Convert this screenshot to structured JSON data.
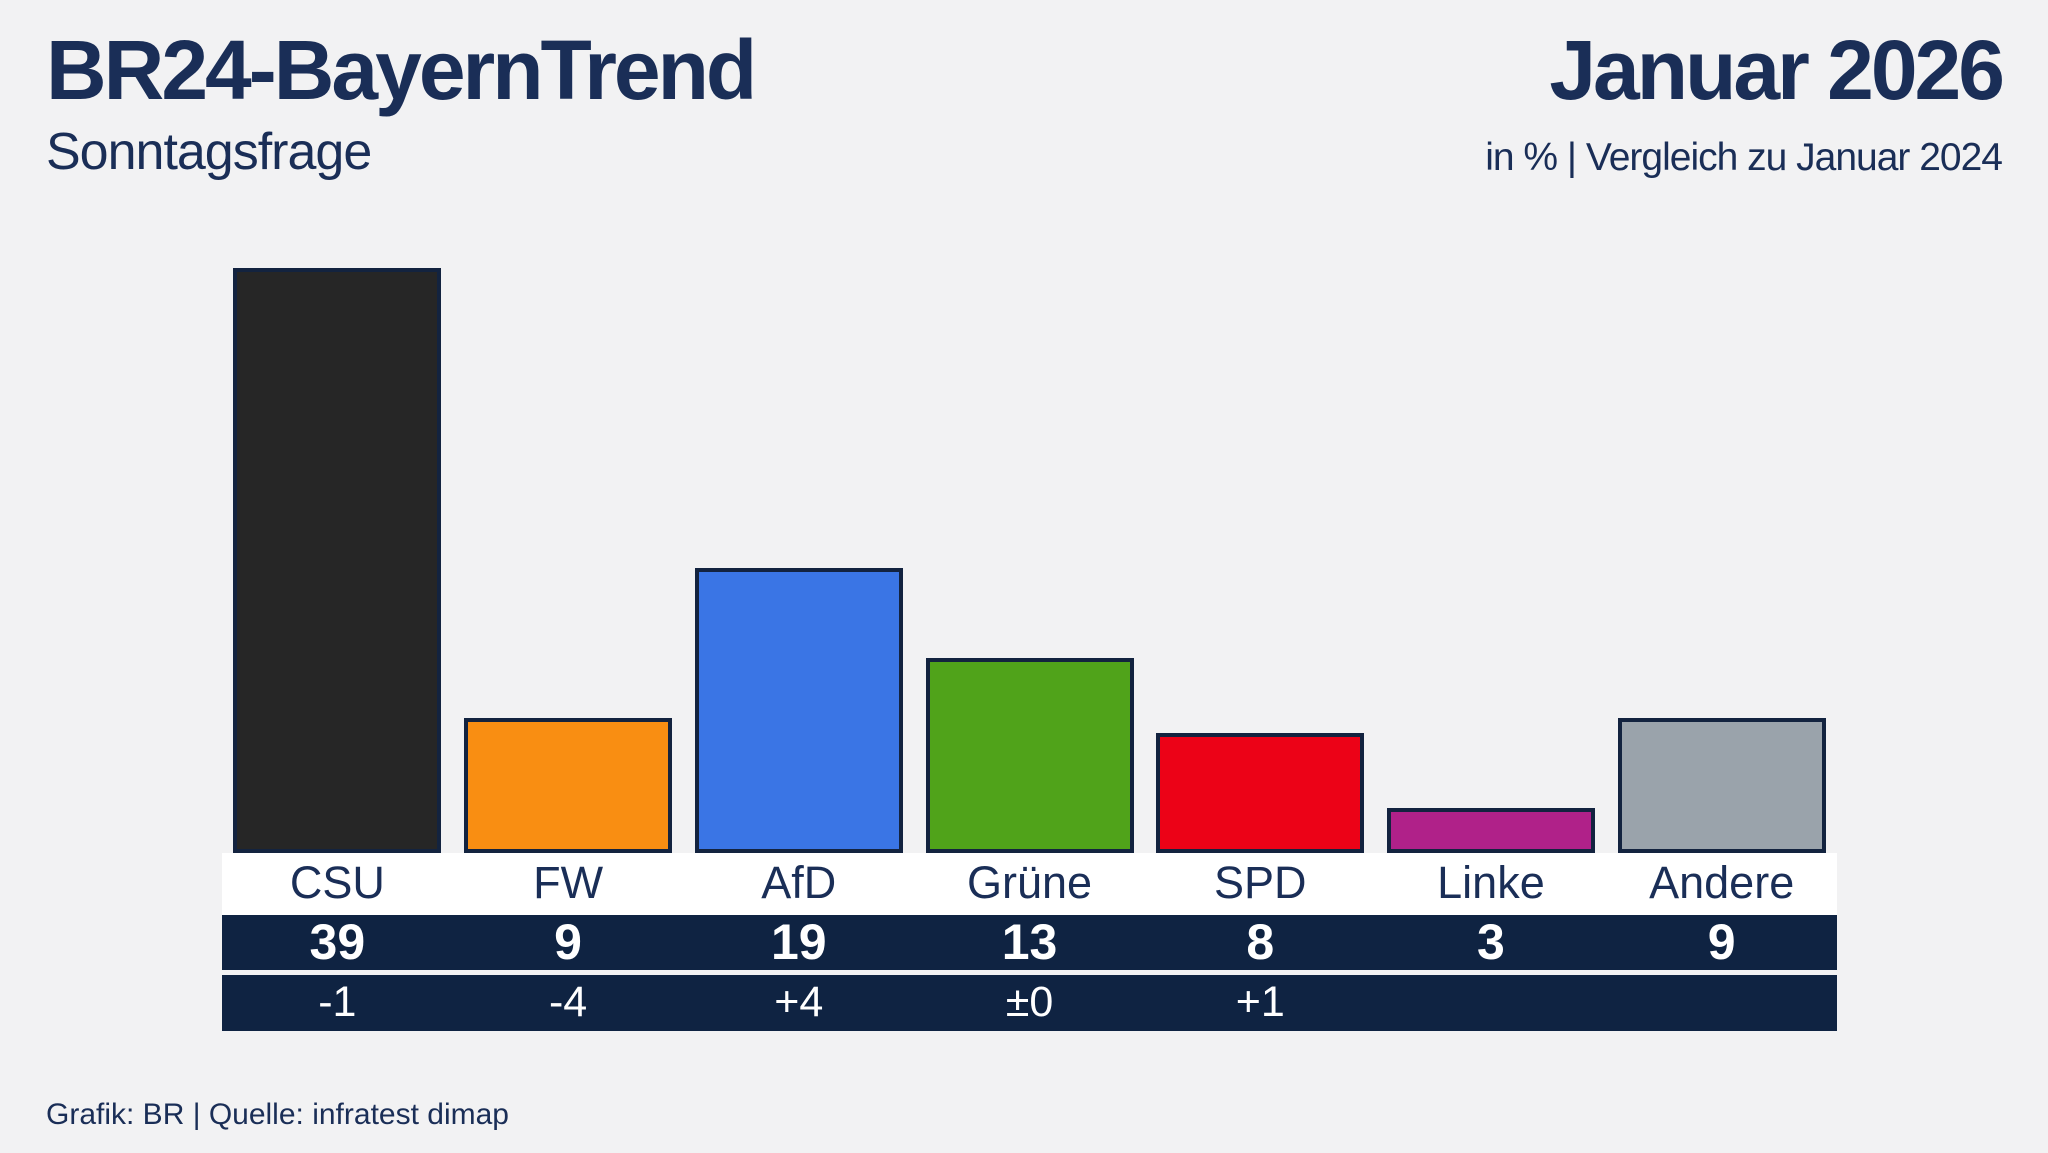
{
  "header": {
    "title": "BR24-BayernTrend",
    "subtitle": "Sonntagsfrage",
    "period": "Januar 2026",
    "note": "in % | Vergleich zu Januar 2024"
  },
  "footer": {
    "source": "Grafik: BR | Quelle: infratest dimap"
  },
  "colors": {
    "background": "#f2f2f3",
    "navy_text": "#1a2e57",
    "navy_band": "#0f2342",
    "bar_border": "#13233f",
    "label_band_background": "#ffffff",
    "value_text": "#ffffff"
  },
  "chart_data": {
    "type": "bar",
    "title": "BR24-BayernTrend – Sonntagsfrage",
    "subtitle": "in % | Vergleich zu Januar 2024",
    "period": "Januar 2026",
    "unit": "%",
    "comparison_period": "Januar 2024",
    "categories": [
      "CSU",
      "FW",
      "AfD",
      "Grüne",
      "SPD",
      "Linke",
      "Andere"
    ],
    "values": [
      39,
      9,
      19,
      13,
      8,
      3,
      9
    ],
    "changes": [
      "-1",
      "-4",
      "+4",
      "±0",
      "+1",
      "",
      ""
    ],
    "bar_colors": [
      "#262626",
      "#f98e12",
      "#3a75e5",
      "#50a31a",
      "#ec0217",
      "#b02189",
      "#9aa3ab"
    ],
    "xlabel": "",
    "ylabel": "",
    "ylim": [
      0,
      40
    ],
    "grid": false,
    "legend": false,
    "value_labels_position": "band-below",
    "source": "Grafik: BR | Quelle: infratest dimap"
  }
}
